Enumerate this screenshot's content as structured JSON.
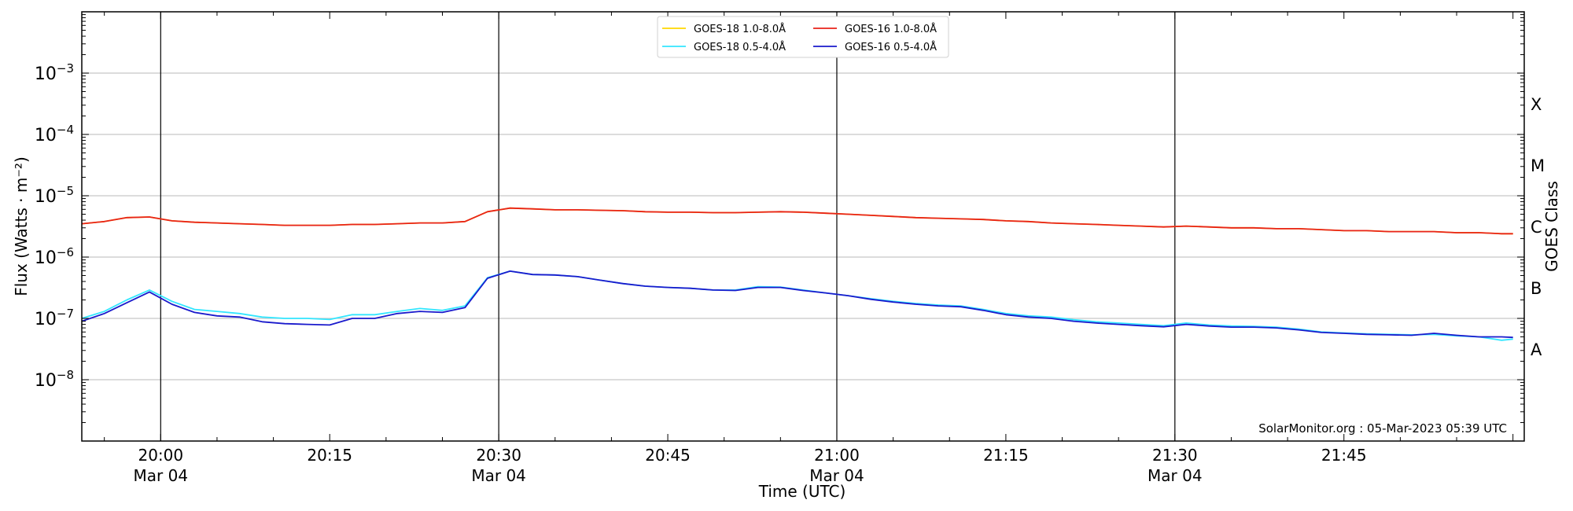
{
  "chart_data": {
    "type": "line",
    "title": "",
    "xlabel": "Time (UTC)",
    "ylabel": "Flux (Watts · m⁻²)",
    "right_axis_label": "GOES Class",
    "y_scale": "log",
    "ylim": [
      1e-09,
      0.01
    ],
    "y_ticks": [
      {
        "value": 1e-08,
        "base": "10",
        "exp": "−8"
      },
      {
        "value": 1e-07,
        "base": "10",
        "exp": "−7"
      },
      {
        "value": 1e-06,
        "base": "10",
        "exp": "−6"
      },
      {
        "value": 1e-05,
        "base": "10",
        "exp": "−5"
      },
      {
        "value": 0.0001,
        "base": "10",
        "exp": "−4"
      },
      {
        "value": 0.001,
        "base": "10",
        "exp": "−3"
      }
    ],
    "class_labels": [
      {
        "label": "A",
        "value": 3.16e-08
      },
      {
        "label": "B",
        "value": 3.16e-07
      },
      {
        "label": "C",
        "value": 3.16e-06
      },
      {
        "label": "M",
        "value": 3.16e-05
      },
      {
        "label": "X",
        "value": 0.000316
      }
    ],
    "x_range": [
      "2023-03-04 19:53",
      "2023-03-04 22:01"
    ],
    "x_ticks": [
      {
        "time": "2023-03-04 20:00",
        "label": "20:00",
        "date_label": "Mar 04",
        "major": true
      },
      {
        "time": "2023-03-04 20:15",
        "label": "20:15",
        "date_label": "",
        "major": false
      },
      {
        "time": "2023-03-04 20:30",
        "label": "20:30",
        "date_label": "Mar 04",
        "major": true
      },
      {
        "time": "2023-03-04 20:45",
        "label": "20:45",
        "date_label": "",
        "major": false
      },
      {
        "time": "2023-03-04 21:00",
        "label": "21:00",
        "date_label": "Mar 04",
        "major": true
      },
      {
        "time": "2023-03-04 21:15",
        "label": "21:15",
        "date_label": "",
        "major": false
      },
      {
        "time": "2023-03-04 21:30",
        "label": "21:30",
        "date_label": "Mar 04",
        "major": true
      },
      {
        "time": "2023-03-04 21:45",
        "label": "21:45",
        "date_label": "",
        "major": false
      }
    ],
    "grid": "horizontal at decades; vertical lines at major ticks",
    "legend_position": "top-center",
    "annotation": "SolarMonitor.org : 05-Mar-2023 05:39 UTC",
    "x": [
      "2023-03-04 19:53",
      "2023-03-04 19:55",
      "2023-03-04 19:57",
      "2023-03-04 19:59",
      "2023-03-04 20:01",
      "2023-03-04 20:03",
      "2023-03-04 20:05",
      "2023-03-04 20:07",
      "2023-03-04 20:09",
      "2023-03-04 20:11",
      "2023-03-04 20:13",
      "2023-03-04 20:15",
      "2023-03-04 20:17",
      "2023-03-04 20:19",
      "2023-03-04 20:21",
      "2023-03-04 20:23",
      "2023-03-04 20:25",
      "2023-03-04 20:27",
      "2023-03-04 20:29",
      "2023-03-04 20:31",
      "2023-03-04 20:33",
      "2023-03-04 20:35",
      "2023-03-04 20:37",
      "2023-03-04 20:39",
      "2023-03-04 20:41",
      "2023-03-04 20:43",
      "2023-03-04 20:45",
      "2023-03-04 20:47",
      "2023-03-04 20:49",
      "2023-03-04 20:51",
      "2023-03-04 20:53",
      "2023-03-04 20:55",
      "2023-03-04 20:57",
      "2023-03-04 20:59",
      "2023-03-04 21:01",
      "2023-03-04 21:03",
      "2023-03-04 21:05",
      "2023-03-04 21:07",
      "2023-03-04 21:09",
      "2023-03-04 21:11",
      "2023-03-04 21:13",
      "2023-03-04 21:15",
      "2023-03-04 21:17",
      "2023-03-04 21:19",
      "2023-03-04 21:21",
      "2023-03-04 21:23",
      "2023-03-04 21:25",
      "2023-03-04 21:27",
      "2023-03-04 21:29",
      "2023-03-04 21:31",
      "2023-03-04 21:33",
      "2023-03-04 21:35",
      "2023-03-04 21:37",
      "2023-03-04 21:39",
      "2023-03-04 21:41",
      "2023-03-04 21:43",
      "2023-03-04 21:45",
      "2023-03-04 21:47",
      "2023-03-04 21:49",
      "2023-03-04 21:51",
      "2023-03-04 21:53",
      "2023-03-04 21:55",
      "2023-03-04 21:57",
      "2023-03-04 21:59",
      "2023-03-04 22:00"
    ],
    "series": [
      {
        "name": "GOES-18 1.0-8.0Å",
        "color": "#ffd700",
        "values": [
          3.5e-06,
          3.8e-06,
          4.4e-06,
          4.5e-06,
          3.9e-06,
          3.7e-06,
          3.6e-06,
          3.5e-06,
          3.4e-06,
          3.3e-06,
          3.3e-06,
          3.3e-06,
          3.4e-06,
          3.4e-06,
          3.5e-06,
          3.6e-06,
          3.6e-06,
          3.8e-06,
          5.5e-06,
          6.3e-06,
          6.1e-06,
          5.9e-06,
          5.9e-06,
          5.8e-06,
          5.7e-06,
          5.5e-06,
          5.4e-06,
          5.4e-06,
          5.3e-06,
          5.3e-06,
          5.4e-06,
          5.5e-06,
          5.4e-06,
          5.2e-06,
          5e-06,
          4.8e-06,
          4.6e-06,
          4.4e-06,
          4.3e-06,
          4.2e-06,
          4.1e-06,
          3.9e-06,
          3.8e-06,
          3.6e-06,
          3.5e-06,
          3.4e-06,
          3.3e-06,
          3.2e-06,
          3.1e-06,
          3.2e-06,
          3.1e-06,
          3e-06,
          3e-06,
          2.9e-06,
          2.9e-06,
          2.8e-06,
          2.7e-06,
          2.7e-06,
          2.6e-06,
          2.6e-06,
          2.6e-06,
          2.5e-06,
          2.5e-06,
          2.4e-06,
          2.4e-06
        ]
      },
      {
        "name": "GOES-18 0.5-4.0Å",
        "color": "#33e6ff",
        "values": [
          1e-07,
          1.3e-07,
          2e-07,
          2.9e-07,
          1.9e-07,
          1.4e-07,
          1.3e-07,
          1.2e-07,
          1.05e-07,
          1e-07,
          1e-07,
          9.6e-08,
          1.15e-07,
          1.15e-07,
          1.3e-07,
          1.45e-07,
          1.35e-07,
          1.6e-07,
          4.6e-07,
          5.9e-07,
          5.2e-07,
          5.1e-07,
          4.8e-07,
          4.2e-07,
          3.7e-07,
          3.35e-07,
          3.2e-07,
          3.1e-07,
          2.9e-07,
          2.9e-07,
          3.3e-07,
          3.25e-07,
          2.9e-07,
          2.6e-07,
          2.35e-07,
          2.1e-07,
          1.9e-07,
          1.75e-07,
          1.65e-07,
          1.6e-07,
          1.4e-07,
          1.2e-07,
          1.1e-07,
          1.05e-07,
          9.5e-08,
          8.8e-08,
          8.4e-08,
          8e-08,
          7.6e-08,
          8.4e-08,
          7.8e-08,
          7.5e-08,
          7.4e-08,
          7.2e-08,
          6.7e-08,
          6e-08,
          5.8e-08,
          5.6e-08,
          5.5e-08,
          5.4e-08,
          5.5e-08,
          5.2e-08,
          5e-08,
          4.4e-08,
          4.6e-08
        ]
      },
      {
        "name": "GOES-16 1.0-8.0Å",
        "color": "#e8231a",
        "values": [
          3.5e-06,
          3.8e-06,
          4.4e-06,
          4.5e-06,
          3.9e-06,
          3.7e-06,
          3.6e-06,
          3.5e-06,
          3.4e-06,
          3.3e-06,
          3.3e-06,
          3.3e-06,
          3.4e-06,
          3.4e-06,
          3.5e-06,
          3.6e-06,
          3.6e-06,
          3.8e-06,
          5.5e-06,
          6.3e-06,
          6.1e-06,
          5.9e-06,
          5.9e-06,
          5.8e-06,
          5.7e-06,
          5.5e-06,
          5.4e-06,
          5.4e-06,
          5.3e-06,
          5.3e-06,
          5.4e-06,
          5.5e-06,
          5.4e-06,
          5.2e-06,
          5e-06,
          4.8e-06,
          4.6e-06,
          4.4e-06,
          4.3e-06,
          4.2e-06,
          4.1e-06,
          3.9e-06,
          3.8e-06,
          3.6e-06,
          3.5e-06,
          3.4e-06,
          3.3e-06,
          3.2e-06,
          3.1e-06,
          3.2e-06,
          3.1e-06,
          3e-06,
          3e-06,
          2.9e-06,
          2.9e-06,
          2.8e-06,
          2.7e-06,
          2.7e-06,
          2.6e-06,
          2.6e-06,
          2.6e-06,
          2.5e-06,
          2.5e-06,
          2.4e-06,
          2.4e-06
        ]
      },
      {
        "name": "GOES-16 0.5-4.0Å",
        "color": "#1a1acc",
        "values": [
          9e-08,
          1.2e-07,
          1.8e-07,
          2.7e-07,
          1.7e-07,
          1.25e-07,
          1.1e-07,
          1.05e-07,
          8.8e-08,
          8.2e-08,
          8e-08,
          7.8e-08,
          1e-07,
          1e-07,
          1.2e-07,
          1.3e-07,
          1.25e-07,
          1.5e-07,
          4.5e-07,
          5.9e-07,
          5.2e-07,
          5.1e-07,
          4.8e-07,
          4.2e-07,
          3.7e-07,
          3.35e-07,
          3.2e-07,
          3.1e-07,
          2.9e-07,
          2.85e-07,
          3.2e-07,
          3.2e-07,
          2.85e-07,
          2.6e-07,
          2.35e-07,
          2.05e-07,
          1.85e-07,
          1.7e-07,
          1.6e-07,
          1.55e-07,
          1.35e-07,
          1.15e-07,
          1.05e-07,
          1e-07,
          9e-08,
          8.4e-08,
          8e-08,
          7.6e-08,
          7.3e-08,
          8e-08,
          7.5e-08,
          7.2e-08,
          7.2e-08,
          7e-08,
          6.5e-08,
          5.9e-08,
          5.7e-08,
          5.5e-08,
          5.4e-08,
          5.3e-08,
          5.7e-08,
          5.3e-08,
          5e-08,
          5e-08,
          4.9e-08
        ]
      }
    ]
  }
}
